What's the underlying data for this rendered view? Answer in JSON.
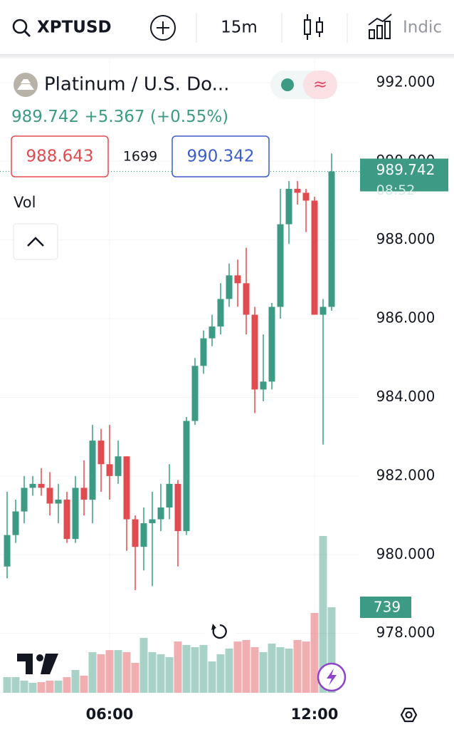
{
  "toolbar": {
    "symbol": "XPTUSD",
    "interval": "15m",
    "indicators": "Indic"
  },
  "legend": {
    "title": "Platinum / U.S. Do...",
    "price": "989.742",
    "change": "+5.367",
    "change_pct": "(+0.55%)",
    "bid": "988.643",
    "spread": "1699",
    "ask": "990.342",
    "volume_label": "Vol"
  },
  "chart_data": {
    "type": "candlestick",
    "up_color": "#3d9a84",
    "down_color": "#e04b4f",
    "categories": [
      null,
      null,
      null,
      null,
      null,
      null,
      null,
      null,
      null,
      null,
      null,
      null,
      "06:00",
      null,
      null,
      null,
      null,
      null,
      null,
      null,
      null,
      null,
      null,
      null,
      null,
      null,
      null,
      null,
      null,
      null,
      null,
      null,
      null,
      null,
      null,
      null,
      "12:00",
      null,
      null
    ],
    "open": [
      979.7,
      980.5,
      981.1,
      981.7,
      981.8,
      981.7,
      981.3,
      981.4,
      980.4,
      981.7,
      981.4,
      982.9,
      982.3,
      982.0,
      982.5,
      980.9,
      980.2,
      980.8,
      980.9,
      981.2,
      981.8,
      980.6,
      983.4,
      984.8,
      985.5,
      985.8,
      986.5,
      987.1,
      986.9,
      986.1,
      984.2,
      984.4,
      986.3,
      988.4,
      989.3,
      989.2,
      989.0,
      986.1,
      986.3
    ],
    "high": [
      981.6,
      981.4,
      982.0,
      982.0,
      982.2,
      982.1,
      981.8,
      981.6,
      982.0,
      982.4,
      983.3,
      983.2,
      983.3,
      982.9,
      982.5,
      981.0,
      981.2,
      981.6,
      981.8,
      982.3,
      981.9,
      983.5,
      985.0,
      985.7,
      986.1,
      986.9,
      987.4,
      987.5,
      987.8,
      986.3,
      985.6,
      986.4,
      989.3,
      989.5,
      989.5,
      989.3,
      989.1,
      986.5,
      990.2
    ],
    "low": [
      979.4,
      980.3,
      980.8,
      981.5,
      981.5,
      981.0,
      980.8,
      980.3,
      980.3,
      981.0,
      980.8,
      981.6,
      981.4,
      981.8,
      980.1,
      979.1,
      979.6,
      979.2,
      980.6,
      980.9,
      979.7,
      980.5,
      983.3,
      984.6,
      985.3,
      985.6,
      986.3,
      986.3,
      985.6,
      983.6,
      983.9,
      984.2,
      986.0,
      987.9,
      988.9,
      988.2,
      986.1,
      982.8,
      986.2
    ],
    "close": [
      980.5,
      981.1,
      981.7,
      981.8,
      981.7,
      981.3,
      981.4,
      980.4,
      981.7,
      981.4,
      982.9,
      982.3,
      982.0,
      982.5,
      980.9,
      980.2,
      980.8,
      980.9,
      981.2,
      981.8,
      980.6,
      983.4,
      984.8,
      985.5,
      985.8,
      986.5,
      987.1,
      986.9,
      986.1,
      984.2,
      984.4,
      986.3,
      988.4,
      989.3,
      989.2,
      989.0,
      986.1,
      986.3,
      989.742
    ],
    "volume": [
      135,
      135,
      105,
      86,
      92,
      105,
      105,
      135,
      197,
      148,
      351,
      333,
      369,
      369,
      351,
      259,
      474,
      351,
      333,
      308,
      443,
      413,
      394,
      413,
      271,
      333,
      382,
      443,
      456,
      394,
      351,
      425,
      394,
      382,
      456,
      443,
      690,
      1355,
      739
    ],
    "countdown": "08:52",
    "ylim": [
      976.49,
      992.65
    ],
    "yticks": [
      {
        "value": 978,
        "label": "978.000"
      },
      {
        "value": 980,
        "label": "980.000"
      },
      {
        "value": 982,
        "label": "982.000"
      },
      {
        "value": 984,
        "label": "984.000"
      },
      {
        "value": 986,
        "label": "986.000"
      },
      {
        "value": 988,
        "label": "988.000"
      },
      {
        "value": 990,
        "label": "990.000"
      },
      {
        "value": 992,
        "label": "992.000"
      }
    ],
    "grid": true
  }
}
